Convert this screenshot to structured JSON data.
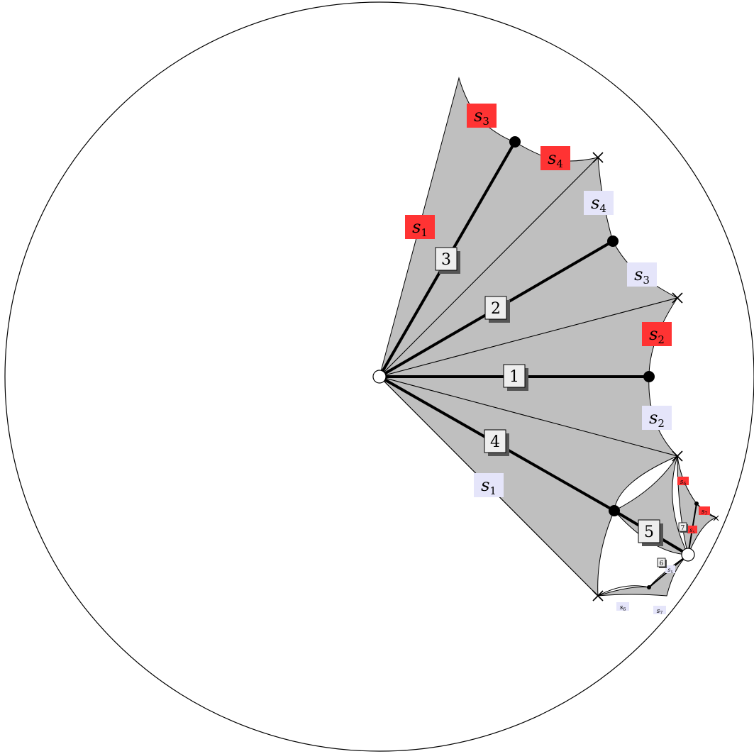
{
  "diagram": {
    "fill_color": "#bfbfbf",
    "red_label_color": "#ff3333",
    "blue_label_color": "#e5e5fa",
    "number_box_color": "#eeeeee",
    "number_shadow_color": "#555555",
    "labels": {
      "red": [
        {
          "id": "s1",
          "base": "s",
          "sub": "1"
        },
        {
          "id": "s3",
          "base": "s",
          "sub": "3"
        },
        {
          "id": "s4",
          "base": "s",
          "sub": "4"
        },
        {
          "id": "s2",
          "base": "s",
          "sub": "2"
        },
        {
          "id": "s6",
          "base": "s",
          "sub": "6"
        },
        {
          "id": "s7",
          "base": "s",
          "sub": "7"
        },
        {
          "id": "s5",
          "base": "s",
          "sub": "5"
        }
      ],
      "blue": [
        {
          "id": "s4",
          "base": "s",
          "sub": "4"
        },
        {
          "id": "s3",
          "base": "s",
          "sub": "3"
        },
        {
          "id": "s2",
          "base": "s",
          "sub": "2"
        },
        {
          "id": "s1",
          "base": "s",
          "sub": "1"
        },
        {
          "id": "s6",
          "base": "s",
          "sub": "6"
        },
        {
          "id": "s7",
          "base": "s",
          "sub": "7"
        },
        {
          "id": "s5",
          "base": "s",
          "sub": "5"
        }
      ]
    },
    "numbers": [
      "1",
      "2",
      "3",
      "4",
      "5",
      "6",
      "7"
    ]
  }
}
